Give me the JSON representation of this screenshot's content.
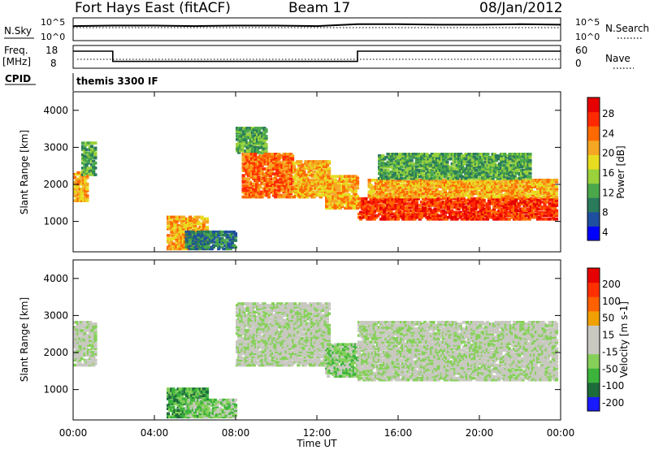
{
  "header": {
    "radar": "Fort Hays East (fitACF)",
    "beam": "Beam 17",
    "date": "08/Jan/2012"
  },
  "panels": {
    "nsky_label": "N.Sky",
    "nsearch_label": "N.Search",
    "nsky_ticks": [
      "10^5",
      "10^0"
    ],
    "nsearch_ticks": [
      "10^5",
      "10^0"
    ],
    "freq_label": "Freq.",
    "freq_unit": "[MHz]",
    "freq_ticks": [
      "18",
      "8"
    ],
    "nave_label": "Nave",
    "nave_ticks": [
      "60",
      "0"
    ],
    "cpid_label": "CPID",
    "cpid_text": "themis 3300 IF"
  },
  "xaxis": {
    "label": "Time UT",
    "ticks": [
      "00:00",
      "04:00",
      "08:00",
      "12:00",
      "16:00",
      "20:00",
      "00:00"
    ]
  },
  "colors": {
    "power": [
      "#0000ff",
      "#1f4f9f",
      "#2a7a5c",
      "#4aa84a",
      "#9ad23c",
      "#e8dc20",
      "#f5a623",
      "#ff6a00",
      "#ff2a00",
      "#e60000"
    ],
    "velocity": [
      "#1a1aff",
      "#1e6b3c",
      "#3cb43c",
      "#86d05a",
      "#c8c8c0",
      "#c8c8c0",
      "#f0a000",
      "#ff6000",
      "#ff3000",
      "#e60000"
    ]
  },
  "chart_data": [
    {
      "type": "line",
      "name": "noise-panel",
      "x": [
        0,
        2,
        4,
        6,
        8,
        10,
        12,
        14,
        16,
        18,
        20,
        22,
        24
      ],
      "series": [
        {
          "values": [
            3.2,
            3.3,
            3.3,
            3.2,
            3.3,
            3.3,
            3.2,
            3.6,
            3.6,
            3.5,
            3.5,
            3.6,
            3.5
          ]
        }
      ],
      "ylim": [
        0,
        5
      ]
    },
    {
      "type": "line",
      "name": "freq-nave-panel",
      "x": [
        0,
        1.95,
        1.95,
        14.0,
        14.0,
        24
      ],
      "series": [
        {
          "values": [
            15.5,
            15.5,
            11,
            11,
            15.5,
            15.5
          ]
        }
      ],
      "ylim": [
        8,
        18
      ]
    },
    {
      "type": "heatmap",
      "name": "power",
      "ylabel": "Slant Range [km]",
      "xlim": [
        0,
        24
      ],
      "ylim": [
        180,
        4500
      ],
      "yticks": [
        1000,
        2000,
        3000,
        4000
      ],
      "colorbar": {
        "label": "Power [dB]",
        "ticks": [
          "28",
          "24",
          "20",
          "16",
          "12",
          "8",
          "4"
        ]
      },
      "regions": [
        {
          "t0": 0.0,
          "t1": 0.7,
          "r0": 1600,
          "r1": 2400,
          "level": 6
        },
        {
          "t0": 0.4,
          "t1": 1.1,
          "r0": 2300,
          "r1": 3200,
          "level": 3
        },
        {
          "t0": 4.6,
          "t1": 6.6,
          "r0": 300,
          "r1": 1200,
          "level": 6
        },
        {
          "t0": 5.5,
          "t1": 8.0,
          "r0": 300,
          "r1": 800,
          "level": 2
        },
        {
          "t0": 8.0,
          "t1": 9.5,
          "r0": 2900,
          "r1": 3600,
          "level": 3
        },
        {
          "t0": 8.3,
          "t1": 10.8,
          "r0": 1700,
          "r1": 2900,
          "level": 7
        },
        {
          "t0": 10.8,
          "t1": 12.6,
          "r0": 1700,
          "r1": 2700,
          "level": 6
        },
        {
          "t0": 12.4,
          "t1": 14.0,
          "r0": 1400,
          "r1": 2300,
          "level": 6
        },
        {
          "t0": 14.0,
          "t1": 23.8,
          "r0": 1100,
          "r1": 1700,
          "level": 8
        },
        {
          "t0": 14.5,
          "t1": 23.8,
          "r0": 1700,
          "r1": 2200,
          "level": 6
        },
        {
          "t0": 15.0,
          "t1": 22.5,
          "r0": 2200,
          "r1": 2900,
          "level": 3
        }
      ]
    },
    {
      "type": "heatmap",
      "name": "velocity",
      "ylabel": "Slant Range [km]",
      "xlim": [
        0,
        24
      ],
      "ylim": [
        180,
        4500
      ],
      "yticks": [
        1000,
        2000,
        3000,
        4000
      ],
      "colorbar": {
        "label": "Velocity [m s-1]",
        "ticks": [
          "200",
          "100",
          "50",
          "15",
          "-15",
          "-50",
          "-100",
          "-200"
        ]
      },
      "regions": [
        {
          "t0": 0.0,
          "t1": 1.1,
          "r0": 1700,
          "r1": 2900,
          "level": 4
        },
        {
          "t0": 4.6,
          "t1": 6.6,
          "r0": 300,
          "r1": 1100,
          "level": 2
        },
        {
          "t0": 5.5,
          "t1": 8.0,
          "r0": 300,
          "r1": 800,
          "level": 3
        },
        {
          "t0": 8.0,
          "t1": 12.6,
          "r0": 1700,
          "r1": 3400,
          "level": 4
        },
        {
          "t0": 12.4,
          "t1": 14.0,
          "r0": 1400,
          "r1": 2300,
          "level": 3
        },
        {
          "t0": 14.0,
          "t1": 23.8,
          "r0": 1300,
          "r1": 2900,
          "level": 4
        }
      ]
    }
  ]
}
